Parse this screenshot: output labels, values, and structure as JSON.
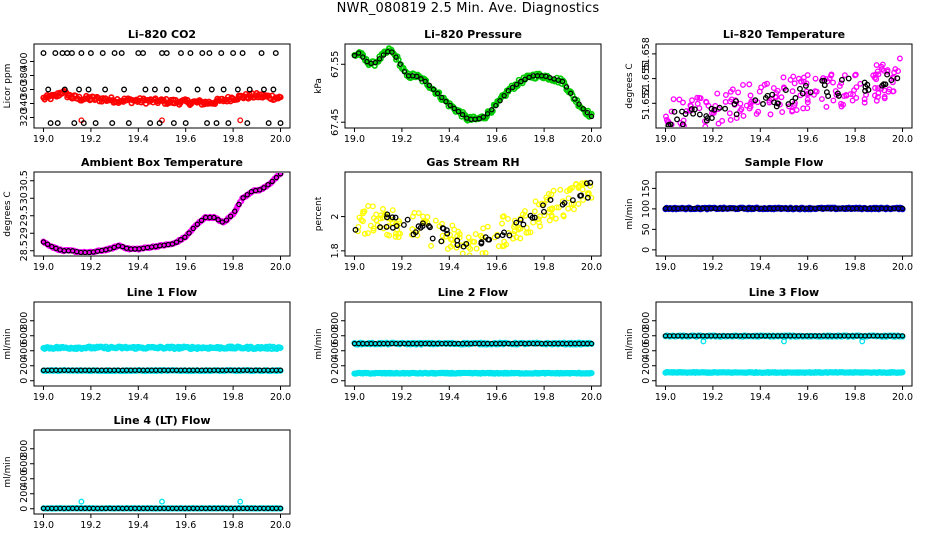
{
  "page_title": "NWR_080819  2.5 Min. Ave. Diagnostics",
  "chart_data": [
    {
      "type": "scatter",
      "title": "Li–820 CO2",
      "ylabel": "Licor ppm",
      "xlim": [
        19.0,
        20.0
      ],
      "ylim": [
        305,
        425
      ],
      "xticks": [
        "19.0",
        "19.2",
        "19.4",
        "19.6",
        "19.8",
        "20.0"
      ],
      "yticks": [
        320,
        340,
        360,
        380,
        400
      ],
      "colors": {
        "series": "#ff0000",
        "reference": "#000000"
      },
      "series": [
        {
          "name": "red",
          "color": "#ff0000",
          "style": "dense",
          "x": [
            19.0,
            19.05,
            19.08,
            19.1,
            19.12,
            19.15,
            19.2,
            19.3,
            19.4,
            19.5,
            19.6,
            19.7,
            19.75,
            19.8,
            19.85,
            19.9,
            20.0
          ],
          "y": [
            347,
            350,
            357,
            352,
            349,
            347,
            347,
            345,
            344,
            343,
            342,
            341,
            344,
            348,
            350,
            351,
            348
          ],
          "spread": 4
        },
        {
          "name": "red-outliers",
          "color": "#ff0000",
          "style": "points",
          "x": [
            19.16,
            19.5,
            19.83
          ],
          "y": [
            316,
            316,
            316
          ]
        },
        {
          "name": "black",
          "color": "#000000",
          "style": "points",
          "x": [
            19.0,
            19.05,
            19.08,
            19.1,
            19.12,
            19.16,
            19.2,
            19.25,
            19.3,
            19.33,
            19.4,
            19.42,
            19.5,
            19.52,
            19.58,
            19.62,
            19.67,
            19.7,
            19.75,
            19.8,
            19.84,
            19.92,
            19.98,
            19.03,
            19.06,
            19.13,
            19.17,
            19.22,
            19.29,
            19.36,
            19.45,
            19.49,
            19.55,
            19.6,
            19.69,
            19.73,
            19.78,
            19.86,
            19.95,
            20.0,
            19.02,
            19.09,
            19.15,
            19.19,
            19.26,
            19.34,
            19.43,
            19.47,
            19.52,
            19.57,
            19.65,
            19.71,
            19.76,
            19.82,
            19.87,
            19.93,
            19.97
          ],
          "y": [
            412,
            412,
            412,
            412,
            412,
            412,
            412,
            412,
            412,
            412,
            412,
            412,
            412,
            412,
            412,
            412,
            412,
            412,
            412,
            412,
            412,
            412,
            412,
            312,
            312,
            312,
            312,
            312,
            312,
            312,
            312,
            312,
            312,
            312,
            312,
            312,
            312,
            312,
            312,
            312,
            360,
            360,
            360,
            360,
            360,
            360,
            360,
            360,
            360,
            360,
            360,
            360,
            360,
            360,
            360,
            360,
            360
          ]
        }
      ]
    },
    {
      "type": "scatter",
      "title": "Li–820 Pressure",
      "ylabel": "kPa",
      "xlim": [
        19.0,
        20.0
      ],
      "ylim": [
        67.44,
        67.585
      ],
      "xticks": [
        "19.0",
        "19.2",
        "19.4",
        "19.6",
        "19.8",
        "20.0"
      ],
      "yticks": [
        67.45,
        67.55
      ],
      "colors": {
        "series": "#00cc00",
        "reference": "#000000"
      },
      "series": [
        {
          "name": "green",
          "color": "#00cc00",
          "style": "dense",
          "x": [
            19.0,
            19.02,
            19.05,
            19.08,
            19.12,
            19.15,
            19.18,
            19.22,
            19.26,
            19.3,
            19.35,
            19.4,
            19.45,
            19.48,
            19.52,
            19.55,
            19.6,
            19.65,
            19.7,
            19.75,
            19.8,
            19.84,
            19.88,
            19.92,
            19.96,
            20.0
          ],
          "y": [
            67.565,
            67.57,
            67.555,
            67.55,
            67.565,
            67.575,
            67.56,
            67.53,
            67.53,
            67.52,
            67.5,
            67.48,
            67.465,
            67.455,
            67.455,
            67.46,
            67.48,
            67.505,
            67.52,
            67.53,
            67.53,
            67.525,
            67.52,
            67.495,
            67.475,
            67.46
          ],
          "spread": 0.005
        },
        {
          "name": "black",
          "color": "#000000",
          "style": "line-points",
          "x": [
            19.0,
            19.02,
            19.05,
            19.08,
            19.12,
            19.15,
            19.18,
            19.22,
            19.26,
            19.3,
            19.35,
            19.4,
            19.45,
            19.48,
            19.52,
            19.55,
            19.6,
            19.65,
            19.7,
            19.75,
            19.8,
            19.84,
            19.88,
            19.92,
            19.96,
            20.0
          ],
          "y": [
            67.565,
            67.57,
            67.555,
            67.55,
            67.565,
            67.575,
            67.56,
            67.53,
            67.53,
            67.52,
            67.5,
            67.48,
            67.465,
            67.455,
            67.455,
            67.46,
            67.48,
            67.505,
            67.52,
            67.53,
            67.53,
            67.525,
            67.52,
            67.495,
            67.475,
            67.46
          ]
        }
      ]
    },
    {
      "type": "scatter",
      "title": "Li–820 Temperature",
      "ylabel": "degrees C",
      "xlim": [
        19.0,
        20.0
      ],
      "ylim": [
        51.649,
        51.6592
      ],
      "xticks": [
        "19.0",
        "19.2",
        "19.4",
        "19.6",
        "19.8",
        "20.0"
      ],
      "yticks": [
        51.652,
        51.655,
        51.658
      ],
      "colors": {
        "series": "#ff00ff",
        "reference": "#000000"
      },
      "series": [
        {
          "name": "magenta",
          "color": "#ff00ff",
          "style": "scatter-noise",
          "x": [
            19.0,
            19.1,
            19.2,
            19.3,
            19.4,
            19.5,
            19.6,
            19.7,
            19.8,
            19.9,
            20.0
          ],
          "y": [
            51.6505,
            51.651,
            51.6515,
            51.652,
            51.6525,
            51.653,
            51.6535,
            51.6535,
            51.654,
            51.6545,
            51.6555
          ],
          "spread": 0.0022
        },
        {
          "name": "black",
          "color": "#000000",
          "style": "scatter-noise",
          "x": [
            19.0,
            19.1,
            19.2,
            19.3,
            19.4,
            19.5,
            19.6,
            19.7,
            19.8,
            19.9,
            20.0
          ],
          "y": [
            51.6502,
            51.6506,
            51.651,
            51.6514,
            51.6522,
            51.6528,
            51.6535,
            51.654,
            51.654,
            51.6545,
            51.6555
          ],
          "spread": 0.0011,
          "count": 60
        }
      ]
    },
    {
      "type": "scatter",
      "title": "Ambient Box Temperature",
      "ylabel": "degrees C",
      "xlim": [
        19.0,
        20.0
      ],
      "ylim": [
        28.35,
        30.75
      ],
      "xticks": [
        "19.0",
        "19.2",
        "19.4",
        "19.6",
        "19.8",
        "20.0"
      ],
      "yticks": [
        28.5,
        29.0,
        29.5,
        30.0,
        30.5
      ],
      "colors": {
        "series": "#ff00ff",
        "reference": "#000000"
      },
      "series": [
        {
          "name": "magenta",
          "color": "#ff00ff",
          "style": "dense",
          "x": [
            19.0,
            19.04,
            19.08,
            19.12,
            19.16,
            19.2,
            19.24,
            19.28,
            19.32,
            19.36,
            19.4,
            19.45,
            19.5,
            19.55,
            19.6,
            19.64,
            19.68,
            19.72,
            19.76,
            19.8,
            19.84,
            19.88,
            19.92,
            19.96,
            20.0
          ],
          "y": [
            28.75,
            28.6,
            28.5,
            28.5,
            28.45,
            28.45,
            28.5,
            28.55,
            28.65,
            28.55,
            28.55,
            28.6,
            28.65,
            28.7,
            28.9,
            29.2,
            29.45,
            29.45,
            29.3,
            29.55,
            30.0,
            30.2,
            30.25,
            30.45,
            30.7
          ],
          "spread": 0.02
        },
        {
          "name": "black",
          "color": "#000000",
          "style": "line-points",
          "x": [
            19.0,
            19.04,
            19.08,
            19.12,
            19.16,
            19.2,
            19.24,
            19.28,
            19.32,
            19.36,
            19.4,
            19.45,
            19.5,
            19.55,
            19.6,
            19.64,
            19.68,
            19.72,
            19.76,
            19.8,
            19.84,
            19.88,
            19.92,
            19.96,
            20.0
          ],
          "y": [
            28.75,
            28.6,
            28.5,
            28.5,
            28.45,
            28.45,
            28.5,
            28.55,
            28.65,
            28.55,
            28.55,
            28.6,
            28.65,
            28.7,
            28.9,
            29.2,
            29.45,
            29.45,
            29.3,
            29.55,
            30.0,
            30.2,
            30.25,
            30.45,
            30.7
          ]
        }
      ]
    },
    {
      "type": "scatter",
      "title": "Gas Stream RH",
      "ylabel": "percent",
      "xlim": [
        19.0,
        20.0
      ],
      "ylim": [
        1.77,
        2.26
      ],
      "xticks": [
        "19.0",
        "19.2",
        "19.4",
        "19.6",
        "19.8",
        "20.0"
      ],
      "yticks": [
        1.8,
        2.0
      ],
      "colors": {
        "series": "#ffff00",
        "reference": "#000000"
      },
      "series": [
        {
          "name": "yellow",
          "color": "#ffff00",
          "style": "scatter-noise",
          "x": [
            19.0,
            19.1,
            19.2,
            19.3,
            19.4,
            19.5,
            19.55,
            19.6,
            19.7,
            19.8,
            19.9,
            20.0
          ],
          "y": [
            1.97,
            1.99,
            1.96,
            1.92,
            1.88,
            1.86,
            1.86,
            1.9,
            1.96,
            2.04,
            2.1,
            2.17
          ],
          "spread": 0.09
        },
        {
          "name": "black",
          "color": "#000000",
          "style": "scatter-noise",
          "x": [
            19.0,
            19.1,
            19.2,
            19.3,
            19.4,
            19.5,
            19.55,
            19.6,
            19.7,
            19.8,
            19.9,
            20.0
          ],
          "y": [
            1.97,
            1.99,
            1.96,
            1.92,
            1.88,
            1.86,
            1.86,
            1.9,
            1.96,
            2.04,
            2.1,
            2.17
          ],
          "spread": 0.05,
          "count": 55
        }
      ]
    },
    {
      "type": "scatter",
      "title": "Sample Flow",
      "ylabel": "ml/min",
      "xlim": [
        19.0,
        20.0
      ],
      "ylim": [
        -15,
        190
      ],
      "xticks": [
        "19.0",
        "19.2",
        "19.4",
        "19.6",
        "19.8",
        "20.0"
      ],
      "yticks": [
        0,
        50,
        100,
        150
      ],
      "colors": {
        "series": "#0000cd",
        "reference": "#000000"
      },
      "series": [
        {
          "name": "blue",
          "color": "#0000cd",
          "style": "dense",
          "x": [
            19.0,
            20.0
          ],
          "y": [
            101,
            101
          ],
          "spread": 2
        },
        {
          "name": "black",
          "color": "#000000",
          "style": "line-points",
          "x": [
            19.0,
            20.0
          ],
          "y": [
            101,
            101
          ]
        }
      ]
    },
    {
      "type": "scatter",
      "title": "Line 1 Flow",
      "ylabel": "ml/min",
      "xlim": [
        19.0,
        20.0
      ],
      "ylim": [
        -70,
        1050
      ],
      "xticks": [
        "19.0",
        "19.2",
        "19.4",
        "19.6",
        "19.8",
        "20.0"
      ],
      "yticks": [
        0,
        200,
        400,
        600,
        800
      ],
      "colors": {
        "series": "#00e5ee",
        "reference": "#000000"
      },
      "series": [
        {
          "name": "cyan-high",
          "color": "#00e5ee",
          "style": "dense",
          "x": [
            19.0,
            20.0
          ],
          "y": [
            440,
            440
          ],
          "spread": 16
        },
        {
          "name": "cyan-low",
          "color": "#00e5ee",
          "style": "dense",
          "x": [
            19.0,
            20.0
          ],
          "y": [
            135,
            135
          ],
          "spread": 6
        },
        {
          "name": "black",
          "color": "#000000",
          "style": "line-points",
          "x": [
            19.0,
            20.0
          ],
          "y": [
            140,
            140
          ]
        }
      ]
    },
    {
      "type": "scatter",
      "title": "Line 2 Flow",
      "ylabel": "ml/min",
      "xlim": [
        19.0,
        20.0
      ],
      "ylim": [
        -70,
        1050
      ],
      "xticks": [
        "19.0",
        "19.2",
        "19.4",
        "19.6",
        "19.8",
        "20.0"
      ],
      "yticks": [
        0,
        200,
        400,
        600,
        800
      ],
      "colors": {
        "series": "#00e5ee",
        "reference": "#000000"
      },
      "series": [
        {
          "name": "cyan-high",
          "color": "#00e5ee",
          "style": "dense",
          "x": [
            19.0,
            20.0
          ],
          "y": [
            495,
            495
          ],
          "spread": 12
        },
        {
          "name": "cyan-low",
          "color": "#00e5ee",
          "style": "dense",
          "x": [
            19.0,
            20.0
          ],
          "y": [
            100,
            100
          ],
          "spread": 6
        },
        {
          "name": "black",
          "color": "#000000",
          "style": "line-points",
          "x": [
            19.0,
            20.0
          ],
          "y": [
            495,
            495
          ]
        }
      ]
    },
    {
      "type": "scatter",
      "title": "Line 3 Flow",
      "ylabel": "ml/min",
      "xlim": [
        19.0,
        20.0
      ],
      "ylim": [
        -70,
        1050
      ],
      "xticks": [
        "19.0",
        "19.2",
        "19.4",
        "19.6",
        "19.8",
        "20.0"
      ],
      "yticks": [
        0,
        200,
        400,
        600,
        800
      ],
      "colors": {
        "series": "#00e5ee",
        "reference": "#000000"
      },
      "series": [
        {
          "name": "cyan-high",
          "color": "#00e5ee",
          "style": "dense",
          "x": [
            19.0,
            20.0
          ],
          "y": [
            595,
            595
          ],
          "spread": 8
        },
        {
          "name": "cyan-low",
          "color": "#00e5ee",
          "style": "dense",
          "x": [
            19.0,
            20.0
          ],
          "y": [
            110,
            110
          ],
          "spread": 5
        },
        {
          "name": "cyan-outliers",
          "color": "#00e5ee",
          "style": "points",
          "x": [
            19.16,
            19.5,
            19.83
          ],
          "y": [
            525,
            525,
            525
          ]
        },
        {
          "name": "black",
          "color": "#000000",
          "style": "line-points",
          "x": [
            19.0,
            20.0
          ],
          "y": [
            598,
            598
          ]
        }
      ]
    },
    {
      "type": "scatter",
      "title": "Line 4 (LT) Flow",
      "ylabel": "ml/min",
      "xlim": [
        19.0,
        20.0
      ],
      "ylim": [
        -70,
        1050
      ],
      "xticks": [
        "19.0",
        "19.2",
        "19.4",
        "19.6",
        "19.8",
        "20.0"
      ],
      "yticks": [
        0,
        200,
        400,
        600,
        800
      ],
      "colors": {
        "series": "#00e5ee",
        "reference": "#000000"
      },
      "series": [
        {
          "name": "cyan",
          "color": "#00e5ee",
          "style": "dense",
          "x": [
            19.0,
            20.0
          ],
          "y": [
            5,
            5
          ],
          "spread": 3
        },
        {
          "name": "cyan-outliers",
          "color": "#00e5ee",
          "style": "points",
          "x": [
            19.16,
            19.5,
            19.83
          ],
          "y": [
            95,
            95,
            95
          ]
        },
        {
          "name": "black",
          "color": "#000000",
          "style": "line-points",
          "x": [
            19.0,
            20.0
          ],
          "y": [
            5,
            5
          ]
        }
      ]
    }
  ]
}
